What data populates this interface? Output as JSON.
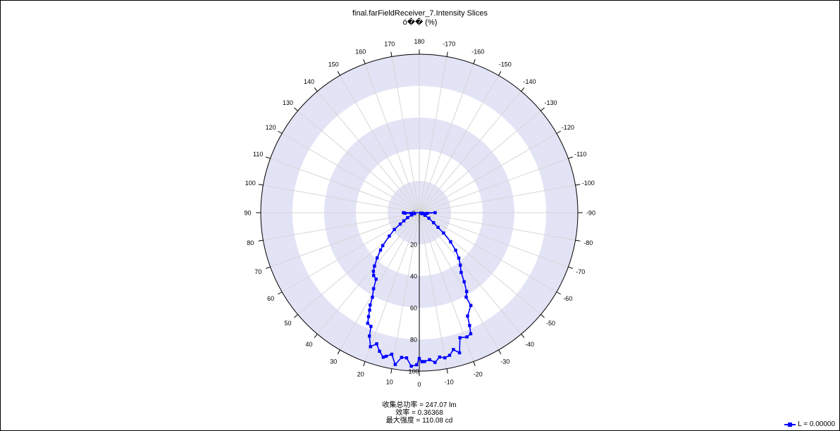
{
  "chart_data": {
    "type": "polar-line",
    "title": "final.farFieldReceiver_7.Intensity Slices",
    "subtitle": "ó�� (%)",
    "angle_ticks": [
      0,
      10,
      20,
      30,
      40,
      50,
      60,
      70,
      80,
      90,
      100,
      110,
      120,
      130,
      140,
      150,
      160,
      170,
      180,
      -170,
      -160,
      -150,
      -140,
      -130,
      -120,
      -110,
      -100,
      -90,
      -80,
      -70,
      -60,
      -50,
      -40,
      -30,
      -20,
      -10
    ],
    "radial_ticks": [
      20,
      40,
      60,
      80,
      100
    ],
    "rlim": [
      0,
      100
    ],
    "series": [
      {
        "name": "L = 0.00000",
        "color": "#0000ff",
        "points": [
          {
            "a": -90,
            "r": 10
          },
          {
            "a": -85,
            "r": 5
          },
          {
            "a": -80,
            "r": 2
          },
          {
            "a": -75,
            "r": 1
          },
          {
            "a": -70,
            "r": 2
          },
          {
            "a": -65,
            "r": 4
          },
          {
            "a": -60,
            "r": 7
          },
          {
            "a": -55,
            "r": 11
          },
          {
            "a": -52,
            "r": 15
          },
          {
            "a": -50,
            "r": 20
          },
          {
            "a": -47,
            "r": 27
          },
          {
            "a": -44,
            "r": 33
          },
          {
            "a": -41,
            "r": 38
          },
          {
            "a": -38,
            "r": 42
          },
          {
            "a": -35,
            "r": 46
          },
          {
            "a": -33,
            "r": 52
          },
          {
            "a": -31,
            "r": 58
          },
          {
            "a": -29,
            "r": 61
          },
          {
            "a": -29,
            "r": 67
          },
          {
            "a": -25,
            "r": 72
          },
          {
            "a": -24,
            "r": 78
          },
          {
            "a": -23,
            "r": 83
          },
          {
            "a": -21,
            "r": 84
          },
          {
            "a": -18,
            "r": 83
          },
          {
            "a": -16,
            "r": 92
          },
          {
            "a": -14,
            "r": 89
          },
          {
            "a": -12,
            "r": 92
          },
          {
            "a": -10,
            "r": 93
          },
          {
            "a": -8,
            "r": 92
          },
          {
            "a": -6,
            "r": 95
          },
          {
            "a": -4,
            "r": 93
          },
          {
            "a": -2,
            "r": 94
          },
          {
            "a": -1,
            "r": 94
          },
          {
            "a": 0,
            "r": 92
          },
          {
            "a": 1,
            "r": 96
          },
          {
            "a": 3,
            "r": 97
          },
          {
            "a": 5,
            "r": 92
          },
          {
            "a": 7,
            "r": 92
          },
          {
            "a": 9,
            "r": 97
          },
          {
            "a": 11,
            "r": 91
          },
          {
            "a": 13,
            "r": 93
          },
          {
            "a": 14,
            "r": 94
          },
          {
            "a": 16,
            "r": 91
          },
          {
            "a": 18,
            "r": 87
          },
          {
            "a": 20,
            "r": 90
          },
          {
            "a": 22,
            "r": 84
          },
          {
            "a": 23,
            "r": 78
          },
          {
            "a": 25,
            "r": 77
          },
          {
            "a": 26,
            "r": 73
          },
          {
            "a": 27,
            "r": 69
          },
          {
            "a": 28,
            "r": 66
          },
          {
            "a": 29,
            "r": 61
          },
          {
            "a": 31,
            "r": 56
          },
          {
            "a": 33,
            "r": 50
          },
          {
            "a": 36,
            "r": 49
          },
          {
            "a": 38,
            "r": 47
          },
          {
            "a": 40,
            "r": 44
          },
          {
            "a": 43,
            "r": 39
          },
          {
            "a": 46,
            "r": 34
          },
          {
            "a": 48,
            "r": 31
          },
          {
            "a": 52,
            "r": 24
          },
          {
            "a": 56,
            "r": 19
          },
          {
            "a": 59,
            "r": 14
          },
          {
            "a": 62,
            "r": 11
          },
          {
            "a": 67,
            "r": 8
          },
          {
            "a": 73,
            "r": 5
          },
          {
            "a": 80,
            "r": 3
          },
          {
            "a": 85,
            "r": 5
          },
          {
            "a": 88,
            "r": 9
          },
          {
            "a": 90,
            "r": 10
          }
        ]
      }
    ],
    "legend": "bottom-right"
  },
  "summary": {
    "line1": "收集总功率 = 247.07   lm",
    "line2": "效率 = 0.36368",
    "line3": "最大强度 = 110.08   cd"
  },
  "legend_label": "L = 0.00000"
}
